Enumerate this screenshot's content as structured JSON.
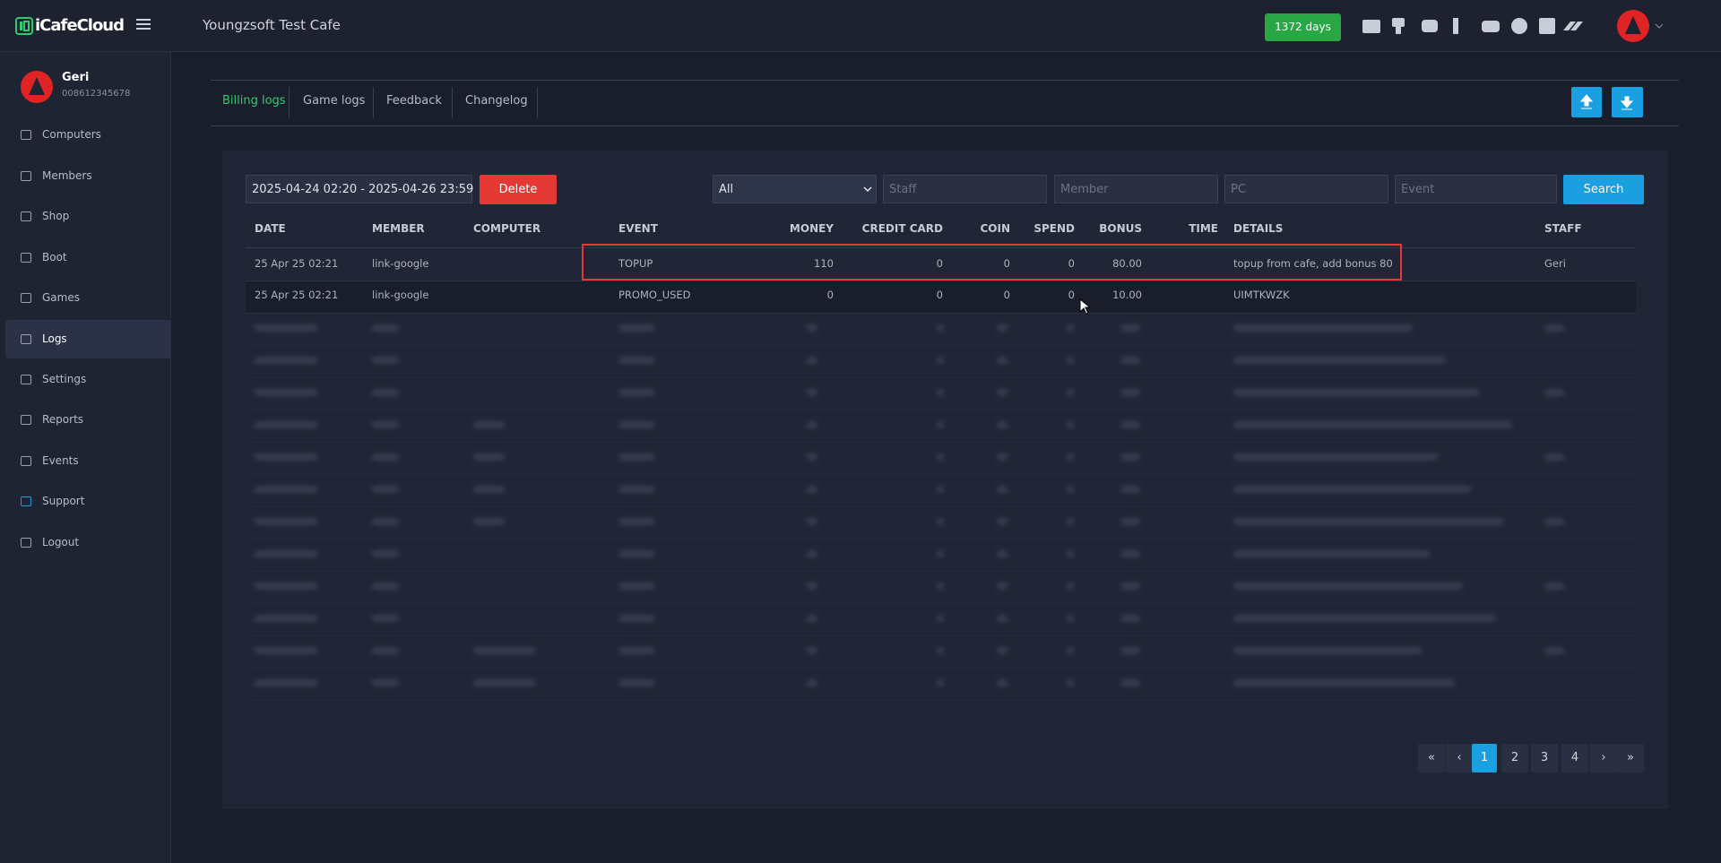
{
  "brand": "iCafeCloud",
  "header": {
    "cafe_name": "Youngzsoft Test Cafe",
    "days_badge": "1372 days"
  },
  "user": {
    "name": "Geri",
    "id": "008612345678"
  },
  "sidebar": [
    "Computers",
    "Members",
    "Shop",
    "Boot",
    "Games",
    "Logs",
    "Settings",
    "Reports",
    "Events",
    "Support",
    "Logout"
  ],
  "tabs": [
    "Billing logs",
    "Game logs",
    "Feedback",
    "Changelog"
  ],
  "filters": {
    "date_range": "2025-04-24 02:20 - 2025-04-26 23:59",
    "delete": "Delete",
    "select": "All",
    "staff": "Staff",
    "member": "Member",
    "pc": "PC",
    "event": "Event",
    "search": "Search"
  },
  "table": {
    "columns": [
      "DATE",
      "MEMBER",
      "COMPUTER",
      "EVENT",
      "MONEY",
      "CREDIT CARD",
      "COIN",
      "SPEND",
      "BONUS",
      "TIME",
      "DETAILS",
      "STAFF"
    ],
    "rows": [
      {
        "date": "25 Apr 25 02:21",
        "member": "link-google",
        "event": "TOPUP",
        "money": "110",
        "credit_card": "0",
        "coin": "0",
        "spend": "0",
        "bonus": "80.00",
        "details": "topup from cafe, add bonus 80",
        "staff": "Geri"
      },
      {
        "date": "25 Apr 25 02:21",
        "member": "link-google",
        "event": "PROMO_USED",
        "money": "0",
        "credit_card": "0",
        "coin": "0",
        "spend": "0",
        "bonus": "10.00",
        "details": "UIMTKWZK"
      }
    ]
  },
  "pagination": [
    "«",
    "‹",
    "1",
    "2",
    "3",
    "4",
    "›",
    "»"
  ]
}
